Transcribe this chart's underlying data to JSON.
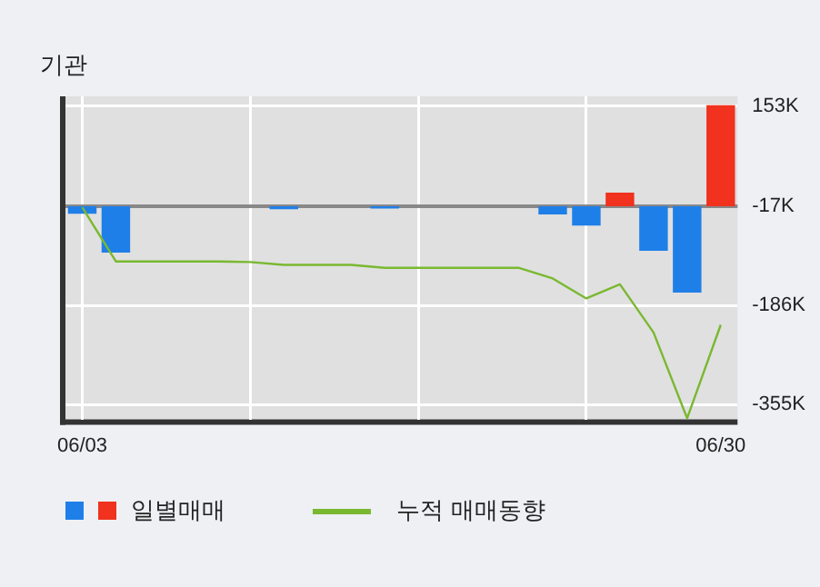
{
  "chart_data": {
    "type": "bar",
    "title": "기관",
    "categories": [
      "06/03",
      null,
      null,
      null,
      null,
      null,
      null,
      null,
      null,
      null,
      null,
      null,
      null,
      null,
      null,
      null,
      null,
      null,
      null,
      "06/30"
    ],
    "series": [
      {
        "name": "일별매매",
        "base": [
          -17,
          -17,
          null,
          null,
          null,
          null,
          -17,
          null,
          null,
          -17,
          null,
          null,
          null,
          null,
          -17,
          -17,
          -17,
          -17,
          -17,
          -17
        ],
        "values": [
          -13,
          -79,
          null,
          null,
          null,
          null,
          -5,
          null,
          null,
          -4,
          null,
          null,
          null,
          null,
          -14,
          -33,
          23,
          -76,
          -147,
          172
        ],
        "colors": [
          "#1f7fe8",
          "#1f7fe8",
          "#1f7fe8",
          "#1f7fe8",
          "#1f7fe8",
          "#1f7fe8",
          "#1f7fe8",
          "#1f7fe8",
          "#1f7fe8",
          "#1f7fe8",
          "#1f7fe8",
          "#1f7fe8",
          "#1f7fe8",
          "#1f7fe8",
          "#1f7fe8",
          "#1f7fe8",
          "#f0321e",
          "#1f7fe8",
          "#1f7fe8",
          "#f0321e"
        ]
      },
      {
        "type": "line",
        "name": "누적 매매동향",
        "color": "#7ab830",
        "values": [
          -19,
          -111,
          -111,
          -111,
          -111,
          -112,
          -117,
          -117,
          -117,
          -122,
          -122,
          -122,
          -122,
          -122,
          -140,
          -174,
          -150,
          -232,
          -378,
          -219
        ]
      }
    ],
    "ylim": [
      -380,
      170
    ],
    "yticks": [
      {
        "value": 153,
        "label": "153K"
      },
      {
        "value": -17,
        "label": "-17K"
      },
      {
        "value": -186,
        "label": "-186K"
      },
      {
        "value": -355,
        "label": "-355K"
      }
    ],
    "ref_lines": [
      {
        "axis": "y",
        "value": -17,
        "color": "#888888"
      }
    ],
    "grid": true,
    "legend": "bottom",
    "marker": "none"
  }
}
